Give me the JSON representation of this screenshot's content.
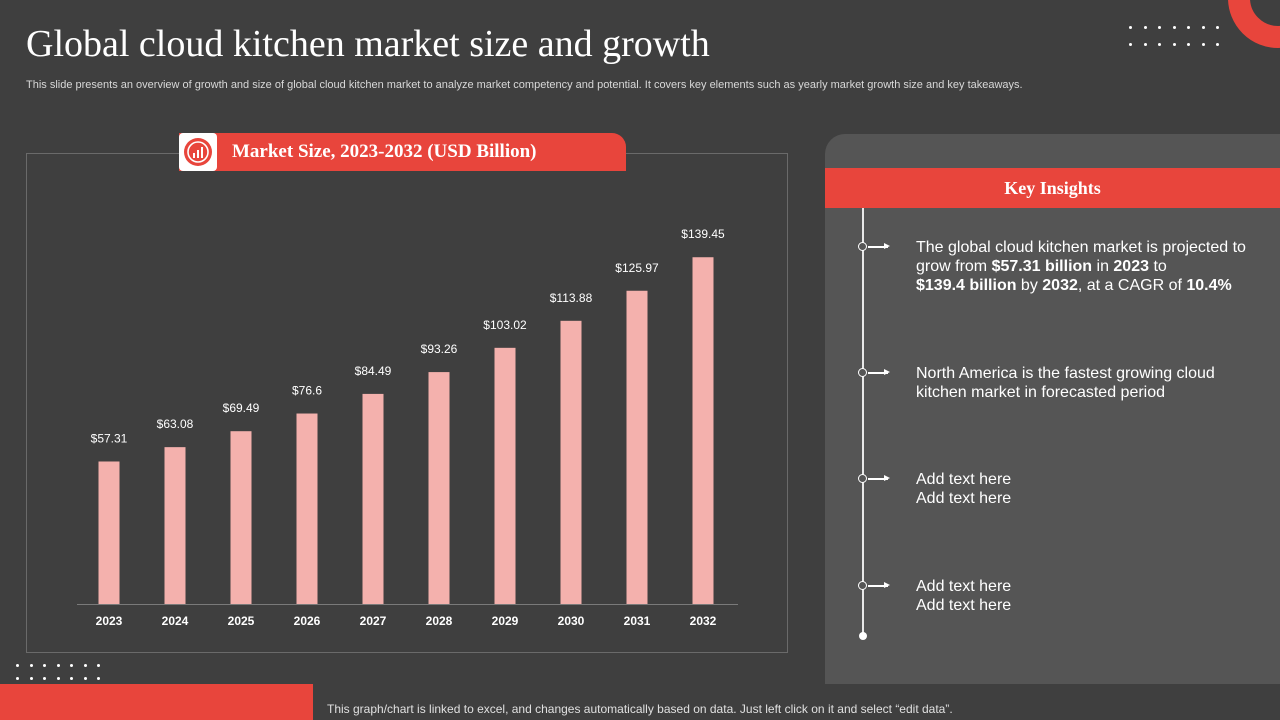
{
  "slide": {
    "title": "Global cloud kitchen market size and growth",
    "subtitle": "This slide presents an overview of growth and size of global cloud kitchen market to analyze market competency and potential. It covers key elements such as yearly market growth size and key takeaways.",
    "footer_note": "This graph/chart is linked to excel,  and changes automatically based on data. Just left click on it and select “edit data”."
  },
  "colors": {
    "background": "#3f3f3f",
    "accent": "#e8453c",
    "bar": "#f4b1ad",
    "panel": "#555555"
  },
  "chart_data": {
    "type": "bar",
    "title": "Market Size, 2023-2032 (USD Billion)",
    "icon": "chart-gauge-icon",
    "categories": [
      "2023",
      "2024",
      "2025",
      "2026",
      "2027",
      "2028",
      "2029",
      "2030",
      "2031",
      "2032"
    ],
    "values": [
      57.31,
      63.08,
      69.49,
      76.6,
      84.49,
      93.26,
      103.02,
      113.88,
      125.97,
      139.45
    ],
    "labels": [
      "$57.31",
      "$63.08",
      "$69.49",
      "$76.6",
      "$84.49",
      "$93.26",
      "$103.02",
      "$113.88",
      "$125.97",
      "$139.45"
    ],
    "xlabel": "",
    "ylabel": "",
    "ylim": [
      0,
      150
    ],
    "grid": false,
    "legend": "none"
  },
  "insights": {
    "title": "Key Insights",
    "items": [
      {
        "parts": [
          {
            "text": "The global cloud kitchen market is projected to grow from ",
            "bold": false
          },
          {
            "text": "$57.31 billion",
            "bold": true
          },
          {
            "text": " in ",
            "bold": false
          },
          {
            "text": "2023",
            "bold": true
          },
          {
            "text": " to ",
            "bold": false
          },
          {
            "text": "$139.4 billion",
            "bold": true
          },
          {
            "text": " by ",
            "bold": false
          },
          {
            "text": "2032",
            "bold": true
          },
          {
            "text": ", at a CAGR of ",
            "bold": false
          },
          {
            "text": "10.4%",
            "bold": true
          }
        ]
      },
      {
        "parts": [
          {
            "text": "North America is the fastest growing cloud kitchen market in forecasted period",
            "bold": false
          }
        ]
      },
      {
        "lines": [
          "Add text here",
          "Add text here"
        ]
      },
      {
        "lines": [
          "Add text here",
          "Add text here"
        ]
      }
    ]
  }
}
